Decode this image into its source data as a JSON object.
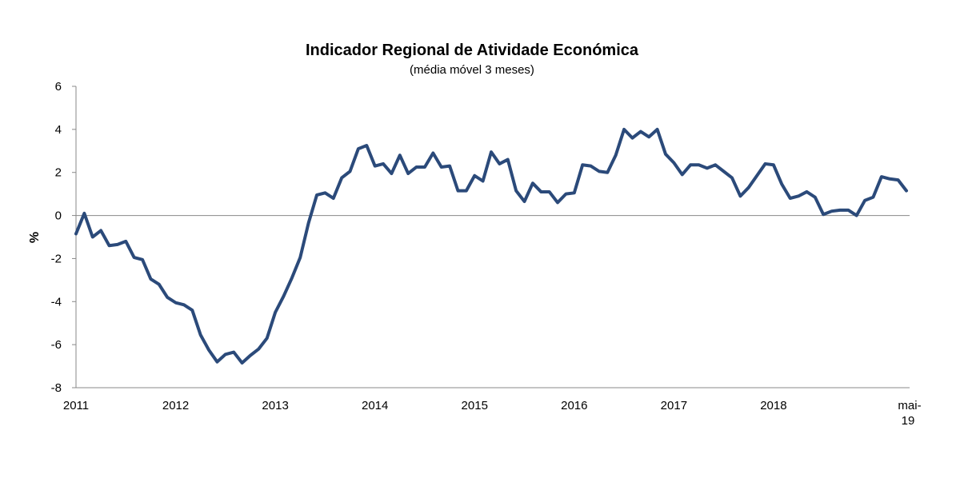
{
  "chart_data": {
    "type": "line",
    "title": "Indicador Regional de Atividade Económica",
    "subtitle": "(média móvel 3 meses)",
    "xlabel": "",
    "ylabel": "%",
    "ylim": [
      -8,
      6
    ],
    "yticks": [
      6,
      4,
      2,
      0,
      -2,
      -4,
      -6,
      -8
    ],
    "ytick_labels": [
      "6",
      "4",
      "2",
      "0",
      "-2",
      "-4",
      "-6",
      "-8"
    ],
    "xtick_labels": [
      "2011",
      "2012",
      "2013",
      "2014",
      "2015",
      "2016",
      "2017",
      "2018",
      "mai-19"
    ],
    "xtick_index": [
      0,
      12,
      24,
      36,
      48,
      60,
      72,
      84,
      100
    ],
    "grid": false,
    "legend": "none",
    "line_color": "#2b4a7a",
    "series": [
      {
        "values": [
          -0.85,
          0.1,
          -1.0,
          -0.7,
          -1.4,
          -1.35,
          -1.2,
          -1.95,
          -2.05,
          -2.95,
          -3.2,
          -3.8,
          -4.05,
          -4.15,
          -4.4,
          -5.55,
          -6.25,
          -6.8,
          -6.45,
          -6.35,
          -6.85,
          -6.5,
          -6.2,
          -5.7,
          -4.5,
          -3.75,
          -2.9,
          -1.95,
          -0.35,
          0.95,
          1.05,
          0.8,
          1.75,
          2.05,
          3.1,
          3.25,
          2.3,
          2.4,
          1.95,
          2.8,
          1.95,
          2.25,
          2.25,
          2.9,
          2.25,
          2.3,
          1.15,
          1.15,
          1.85,
          1.6,
          2.95,
          2.4,
          2.6,
          1.15,
          0.65,
          1.5,
          1.1,
          1.1,
          0.6,
          1.0,
          1.05,
          2.35,
          2.3,
          2.05,
          2.0,
          2.8,
          4.0,
          3.6,
          3.9,
          3.65,
          4.0,
          2.85,
          2.45,
          1.9,
          2.35,
          2.35,
          2.2,
          2.35,
          2.05,
          1.75,
          0.9,
          1.3,
          1.85,
          2.4,
          2.35,
          1.45,
          0.8,
          0.9,
          1.1,
          0.85,
          0.05,
          0.2,
          0.25,
          0.25,
          0.0,
          0.7,
          0.85,
          1.8,
          1.7,
          1.65,
          1.15
        ]
      }
    ]
  }
}
